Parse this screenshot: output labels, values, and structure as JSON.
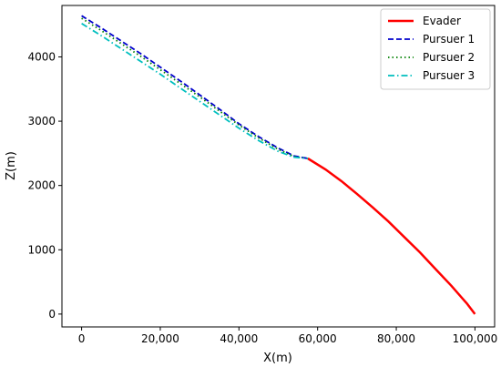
{
  "chart_data": {
    "type": "line",
    "title": "",
    "xlabel": "X(m)",
    "ylabel": "Z(m)",
    "xlim": [
      -5000,
      105000
    ],
    "ylim": [
      -200,
      4800
    ],
    "grid": false,
    "legend_position": "top-right",
    "x_ticks": [
      0,
      20000,
      40000,
      60000,
      80000,
      100000
    ],
    "x_tick_labels": [
      "0",
      "20,000",
      "40,000",
      "60,000",
      "80,000",
      "100,000"
    ],
    "y_ticks": [
      0,
      1000,
      2000,
      3000,
      4000
    ],
    "y_tick_labels": [
      "0",
      "1000",
      "2000",
      "3000",
      "4000"
    ],
    "series": [
      {
        "name": "Evader",
        "color": "#ff0000",
        "dash": "solid",
        "x": [
          57500,
          62000,
          66000,
          70000,
          74000,
          78000,
          82000,
          86000,
          90000,
          94000,
          98000,
          100000
        ],
        "y": [
          2420,
          2250,
          2070,
          1870,
          1660,
          1440,
          1200,
          960,
          700,
          440,
          160,
          0
        ]
      },
      {
        "name": "Pursuer 1",
        "color": "#0000cc",
        "dash": "dashed",
        "x": [
          0,
          5000,
          10000,
          15000,
          20000,
          25000,
          30000,
          35000,
          40000,
          45000,
          50000,
          54000,
          57500
        ],
        "y": [
          4640,
          4450,
          4250,
          4050,
          3840,
          3630,
          3410,
          3190,
          2960,
          2760,
          2580,
          2460,
          2420
        ]
      },
      {
        "name": "Pursuer 2",
        "color": "#008000",
        "dash": "dotted",
        "x": [
          0,
          5000,
          10000,
          15000,
          20000,
          25000,
          30000,
          35000,
          40000,
          45000,
          50000,
          54000,
          57500
        ],
        "y": [
          4600,
          4410,
          4210,
          4010,
          3800,
          3590,
          3380,
          3160,
          2940,
          2740,
          2560,
          2450,
          2420
        ]
      },
      {
        "name": "Pursuer 3",
        "color": "#00bfbf",
        "dash": "dashdot",
        "x": [
          0,
          5000,
          10000,
          15000,
          20000,
          25000,
          30000,
          35000,
          40000,
          45000,
          50000,
          54000,
          57500
        ],
        "y": [
          4520,
          4330,
          4130,
          3930,
          3730,
          3520,
          3310,
          3100,
          2890,
          2700,
          2530,
          2440,
          2420
        ]
      }
    ]
  }
}
